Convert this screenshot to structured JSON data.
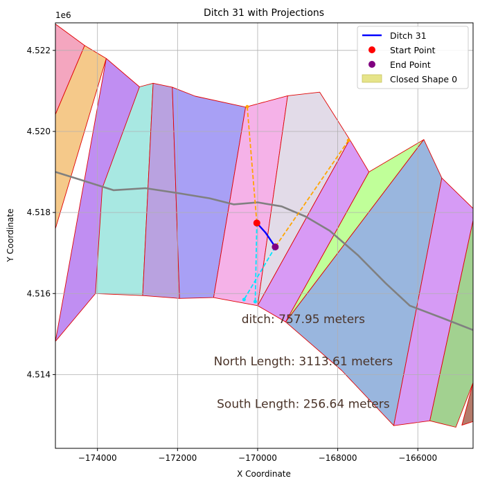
{
  "chart_data": {
    "type": "map",
    "title": "Ditch 31 with Projections",
    "xlabel": "X Coordinate",
    "ylabel": "Y Coordinate",
    "y_offset_label": "1e6",
    "xlim": [
      -175050,
      -164620
    ],
    "ylim": [
      4512180,
      4522680
    ],
    "x_ticks": [
      -174000,
      -172000,
      -170000,
      -168000,
      -166000
    ],
    "x_tick_labels": [
      "−174000",
      "−172000",
      "−170000",
      "−168000",
      "−166000"
    ],
    "y_ticks": [
      4514000,
      4516000,
      4518000,
      4520000,
      4522000
    ],
    "y_tick_labels": [
      "4.514",
      "4.516",
      "4.518",
      "4.520",
      "4.522"
    ],
    "grid": true,
    "legend_position": "top-right",
    "legend": [
      {
        "label": "Ditch 31",
        "kind": "line",
        "color": "#0000ff"
      },
      {
        "label": "Start Point",
        "kind": "point",
        "color": "#ff0000"
      },
      {
        "label": "End Point",
        "kind": "point",
        "color": "#800080"
      },
      {
        "label": "Closed Shape 0",
        "kind": "patch",
        "color": "#e6e48a"
      }
    ],
    "polygons": [
      {
        "fill": "#f4a6bf",
        "points": [
          [
            -175050,
            4522650
          ],
          [
            -174320,
            4522120
          ],
          [
            -175050,
            4520420
          ]
        ]
      },
      {
        "fill": "#f5c98a",
        "points": [
          [
            -174320,
            4522120
          ],
          [
            -173780,
            4521800
          ],
          [
            -175050,
            4517600
          ],
          [
            -175050,
            4520420
          ]
        ]
      },
      {
        "fill": "#c08ef2",
        "points": [
          [
            -173780,
            4521800
          ],
          [
            -172950,
            4521100
          ],
          [
            -174050,
            4516000
          ],
          [
            -175050,
            4514820
          ]
        ]
      },
      {
        "fill": "#a8e8e2",
        "points": [
          [
            -172950,
            4521100
          ],
          [
            -172610,
            4521190
          ],
          [
            -172870,
            4515950
          ],
          [
            -174050,
            4516000
          ],
          [
            -173880,
            4518600
          ]
        ]
      },
      {
        "fill": "#b9a2e0",
        "points": [
          [
            -172610,
            4521190
          ],
          [
            -172130,
            4521090
          ],
          [
            -171950,
            4515880
          ],
          [
            -172870,
            4515950
          ]
        ]
      },
      {
        "fill": "#a8a0f5",
        "points": [
          [
            -172130,
            4521090
          ],
          [
            -171560,
            4520870
          ],
          [
            -170300,
            4520600
          ],
          [
            -171100,
            4515900
          ],
          [
            -171950,
            4515880
          ]
        ]
      },
      {
        "fill": "#f5b2e8",
        "points": [
          [
            -170300,
            4520600
          ],
          [
            -169250,
            4520880
          ],
          [
            -170000,
            4515700
          ],
          [
            -171100,
            4515900
          ]
        ]
      },
      {
        "fill": "#e2dbe8",
        "points": [
          [
            -169250,
            4520880
          ],
          [
            -168450,
            4520970
          ],
          [
            -167700,
            4519800
          ],
          [
            -170000,
            4515700
          ]
        ]
      },
      {
        "fill": "#d89af5",
        "points": [
          [
            -167700,
            4519800
          ],
          [
            -167220,
            4519000
          ],
          [
            -169300,
            4515300
          ],
          [
            -170000,
            4515700
          ]
        ]
      },
      {
        "fill": "#c0ff99",
        "points": [
          [
            -167220,
            4519000
          ],
          [
            -165850,
            4519800
          ],
          [
            -169300,
            4515300
          ]
        ]
      },
      {
        "fill": "#99b6de",
        "points": [
          [
            -165850,
            4519800
          ],
          [
            -165400,
            4518850
          ],
          [
            -166600,
            4512740
          ],
          [
            -167900,
            4514100
          ],
          [
            -169300,
            4515300
          ]
        ]
      },
      {
        "fill": "#d69bf5",
        "points": [
          [
            -165400,
            4518850
          ],
          [
            -164620,
            4518100
          ],
          [
            -164620,
            4517800
          ],
          [
            -165700,
            4512860
          ],
          [
            -166600,
            4512740
          ]
        ]
      },
      {
        "fill": "#a2d190",
        "points": [
          [
            -164620,
            4517800
          ],
          [
            -164620,
            4513800
          ],
          [
            -165050,
            4512700
          ],
          [
            -165700,
            4512860
          ]
        ]
      },
      {
        "fill": "#b57a6a",
        "points": [
          [
            -164620,
            4513800
          ],
          [
            -164620,
            4512840
          ],
          [
            -164900,
            4512750
          ]
        ]
      }
    ],
    "dashed_orange_lines": [
      [
        [
          -170260,
          4520610
        ],
        [
          -170020,
          4517740
        ]
      ],
      [
        [
          -167730,
          4519780
        ],
        [
          -169560,
          4517150
        ]
      ]
    ],
    "dashed_cyan_lines": [
      [
        [
          -170020,
          4517740
        ],
        [
          -170060,
          4515800
        ]
      ],
      [
        [
          -169560,
          4517150
        ],
        [
          -170340,
          4515850
        ]
      ]
    ],
    "gray_line": [
      [
        -175050,
        4519000
      ],
      [
        -174400,
        4518800
      ],
      [
        -173600,
        4518550
      ],
      [
        -172800,
        4518600
      ],
      [
        -172000,
        4518480
      ],
      [
        -171200,
        4518350
      ],
      [
        -170600,
        4518200
      ],
      [
        -170000,
        4518250
      ],
      [
        -169400,
        4518150
      ],
      [
        -168800,
        4517900
      ],
      [
        -168200,
        4517550
      ],
      [
        -167500,
        4516950
      ],
      [
        -166800,
        4516250
      ],
      [
        -166200,
        4515700
      ],
      [
        -165400,
        4515400
      ],
      [
        -164620,
        4515100
      ]
    ],
    "ditch_line": [
      [
        -170020,
        4517740
      ],
      [
        -169800,
        4517500
      ],
      [
        -169560,
        4517150
      ]
    ],
    "start_point": [
      -170020,
      4517740
    ],
    "end_point": [
      -169560,
      4517150
    ],
    "annotations": [
      {
        "text": "ditch: 757.95 meters",
        "x": -168860,
        "y": 4515270
      },
      {
        "text": "North Length: 3113.61 meters",
        "x": -168860,
        "y": 4514230
      },
      {
        "text": "South Length: 256.64 meters",
        "x": -168860,
        "y": 4513180
      }
    ]
  }
}
